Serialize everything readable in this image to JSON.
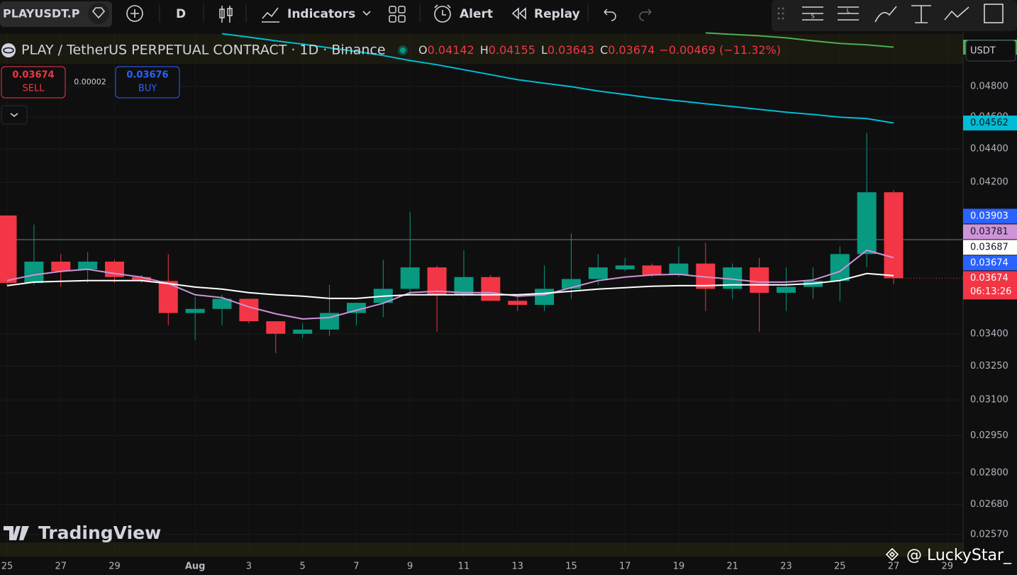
{
  "toolbar": {
    "symbol": "PLAYUSDT.P",
    "interval": "D",
    "indicators": "Indicators",
    "alert": "Alert",
    "replay": "Replay"
  },
  "legend": {
    "title": "PLAY / TetherUS PERPETUAL CONTRACT · 1D · Binance",
    "ohlc_letters": [
      "O",
      "H",
      "L",
      "C"
    ],
    "change": "−0.00469 (−11.32%)"
  },
  "trade": {
    "sell_price": "0.03674",
    "sell": "SELL",
    "spread": "0.00002",
    "buy_price": "0.03676",
    "buy": "BUY"
  },
  "currency": "USDT",
  "watermark": "TradingView",
  "signature": "@ LuckyStar_",
  "chart_data": {
    "type": "candlestick",
    "log_scale": true,
    "grid": true,
    "up_color": "#089981",
    "down_color": "#f23645",
    "categories": [
      "25",
      null,
      "27",
      null,
      "29",
      null,
      null,
      "Aug",
      null,
      "3",
      null,
      "5",
      null,
      "7",
      null,
      "9",
      null,
      "11",
      null,
      "13",
      null,
      "15",
      null,
      "17",
      null,
      "19",
      null,
      "21",
      null,
      "23",
      null,
      "25",
      null,
      "27",
      null,
      "29"
    ],
    "open": [
      0.0401,
      0.0365,
      0.0376,
      0.0372,
      0.0376,
      0.0368,
      0.0366,
      0.035,
      0.0352,
      0.0357,
      0.0346,
      0.034,
      0.0342,
      0.035,
      0.0355,
      0.0362,
      0.0373,
      0.0359,
      0.0368,
      0.0356,
      0.0354,
      0.0362,
      0.0367,
      0.0372,
      0.0374,
      0.0369,
      0.0375,
      0.0362,
      0.0373,
      0.036,
      0.0363,
      0.0366,
      0.038,
      0.04142,
      null,
      null
    ],
    "high": [
      0.0401,
      0.0396,
      0.038,
      0.0381,
      0.0377,
      0.0369,
      0.038,
      0.0358,
      0.0359,
      0.0357,
      0.0346,
      0.0345,
      0.0364,
      0.0355,
      0.0377,
      0.0403,
      0.0374,
      0.0382,
      0.0369,
      0.0359,
      0.0374,
      0.0391,
      0.038,
      0.0378,
      0.0375,
      0.0384,
      0.0386,
      0.0375,
      0.0378,
      0.0373,
      0.0373,
      0.0384,
      0.045,
      0.04155,
      null,
      null
    ],
    "low": [
      0.0364,
      0.0364,
      0.0363,
      0.0365,
      0.0365,
      0.0365,
      0.0344,
      0.0337,
      0.0344,
      0.0345,
      0.0331,
      0.0338,
      0.0339,
      0.0344,
      0.0348,
      0.0359,
      0.0341,
      0.0358,
      0.0356,
      0.0351,
      0.0351,
      0.0357,
      0.0364,
      0.0371,
      0.0368,
      0.0368,
      0.0351,
      0.0357,
      0.0341,
      0.0351,
      0.0357,
      0.0356,
      0.0373,
      0.03643,
      null,
      null
    ],
    "close": [
      0.0365,
      0.0376,
      0.0371,
      0.0376,
      0.0368,
      0.0366,
      0.035,
      0.0352,
      0.0357,
      0.0346,
      0.034,
      0.0342,
      0.035,
      0.0355,
      0.0362,
      0.0373,
      0.0359,
      0.0368,
      0.0356,
      0.0354,
      0.0362,
      0.0367,
      0.0373,
      0.0374,
      0.0369,
      0.0375,
      0.0362,
      0.0373,
      0.036,
      0.0363,
      0.0366,
      0.038,
      0.04142,
      0.03674,
      null,
      null
    ],
    "lines": [
      {
        "color": "#ce93d8",
        "values": [
          0.03662,
          0.03691,
          0.03709,
          0.0372,
          0.03698,
          0.0368,
          0.03647,
          0.0359,
          0.03576,
          0.0353,
          0.03496,
          0.03471,
          0.03478,
          0.03513,
          0.03548,
          0.03601,
          0.03608,
          0.03601,
          0.03601,
          0.03583,
          0.0359,
          0.03626,
          0.03662,
          0.0368,
          0.03691,
          0.03694,
          0.0368,
          0.03669,
          0.03654,
          0.03654,
          0.03665,
          0.03709,
          0.0382,
          0.03781,
          null,
          null
        ]
      },
      {
        "color": "#ffffff",
        "values": [
          0.03636,
          0.03654,
          0.03658,
          0.03662,
          0.03662,
          0.03662,
          0.03647,
          0.03629,
          0.03619,
          0.03601,
          0.0359,
          0.03583,
          0.03572,
          0.03572,
          0.03583,
          0.0359,
          0.0359,
          0.0359,
          0.0359,
          0.0359,
          0.03597,
          0.03608,
          0.03619,
          0.03626,
          0.03633,
          0.03636,
          0.03636,
          0.0364,
          0.0364,
          0.0364,
          0.03647,
          0.03662,
          0.03698,
          0.03687,
          null,
          null
        ]
      },
      {
        "color": "#00bcd4",
        "values": [
          null,
          null,
          null,
          null,
          null,
          null,
          null,
          null,
          0.05167,
          0.05142,
          0.05116,
          0.05092,
          0.05066,
          0.05041,
          0.05012,
          0.04977,
          0.04948,
          0.04914,
          0.0488,
          0.04846,
          0.04822,
          0.04799,
          0.0477,
          0.04747,
          0.04724,
          0.04705,
          0.04686,
          0.04668,
          0.0465,
          0.04631,
          0.04617,
          0.04599,
          0.0459,
          0.04562,
          null,
          null
        ]
      },
      {
        "color": "#4caf50",
        "values": [
          null,
          null,
          null,
          null,
          null,
          null,
          null,
          null,
          null,
          null,
          null,
          null,
          null,
          null,
          null,
          null,
          null,
          null,
          null,
          null,
          null,
          null,
          null,
          null,
          null,
          null,
          0.05173,
          0.05162,
          0.05152,
          0.05137,
          0.05116,
          0.05097,
          0.05087,
          0.05071,
          null,
          null
        ]
      }
    ],
    "price_line": {
      "value": 0.03877,
      "color": "#787b86"
    },
    "extra_labels": [
      {
        "value": 0.03903,
        "color": "#2962ff"
      },
      {
        "value": 0.03674,
        "color": "#2962ff"
      }
    ],
    "countdown": "06:13:26",
    "ylim": [
      0.02492,
      0.0518
    ],
    "yticks": [
      {
        "value": 0.048,
        "label": "0.04800"
      },
      {
        "value": 0.046,
        "label": "0.04600"
      },
      {
        "value": 0.044,
        "label": "0.04400"
      },
      {
        "value": 0.042,
        "label": "0.04200"
      },
      {
        "value": 0.034,
        "label": "0.03400"
      },
      {
        "value": 0.0325,
        "label": "0.03250"
      },
      {
        "value": 0.031,
        "label": "0.03100"
      },
      {
        "value": 0.0295,
        "label": "0.02950"
      },
      {
        "value": 0.028,
        "label": "0.02800"
      },
      {
        "value": 0.0268,
        "label": "0.02680"
      },
      {
        "value": 0.0257,
        "label": "0.02570"
      }
    ]
  }
}
